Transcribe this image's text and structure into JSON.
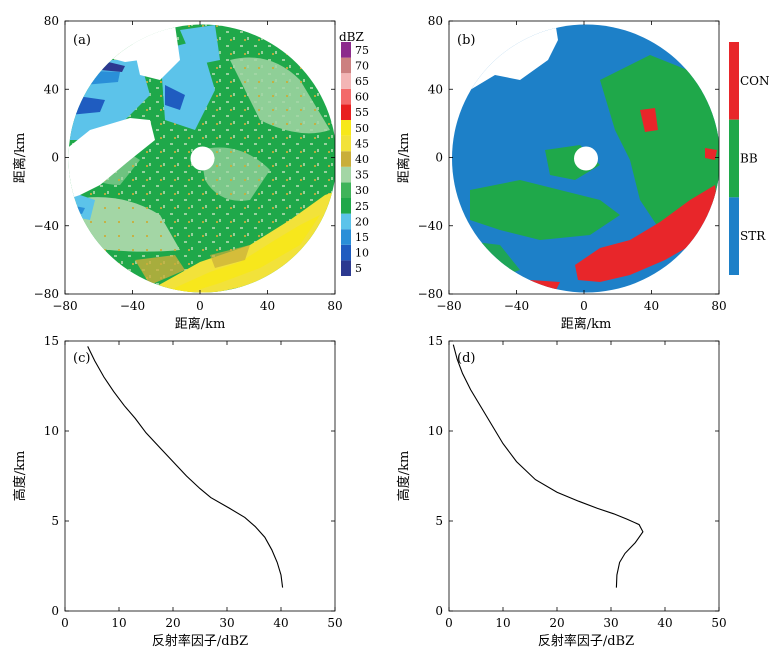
{
  "chart_data": [
    {
      "panel": "(a)",
      "type": "heatmap",
      "xlabel": "距离/km",
      "ylabel": "距离/km",
      "xlim": [
        -80,
        80
      ],
      "ylim": [
        -80,
        80
      ],
      "xticks": [
        "−80",
        "−40",
        "0",
        "40",
        "80"
      ],
      "yticks": [
        "80",
        "40",
        "0",
        "−40",
        "−80"
      ],
      "colorbar": {
        "title": "dBZ",
        "levels": [
          5,
          10,
          15,
          20,
          25,
          30,
          35,
          40,
          45,
          50,
          55,
          60,
          65,
          70,
          75
        ],
        "labels": [
          "5",
          "10",
          "15",
          "20",
          "25",
          "30",
          "35",
          "40",
          "45",
          "50",
          "55",
          "60",
          "65",
          "70",
          "75"
        ],
        "colors": [
          "#2c3990",
          "#1f5cc0",
          "#2a8fd8",
          "#5cc3ea",
          "#1fa84a",
          "#3fb45a",
          "#a3d6a5",
          "#c9ae3a",
          "#f2e23a",
          "#f7e81a",
          "#e82020",
          "#f36a6a",
          "#f3b5b5",
          "#cc8080",
          "#8c2a8c"
        ]
      }
    },
    {
      "panel": "(b)",
      "type": "heatmap",
      "xlabel": "距离/km",
      "ylabel": "距离/km",
      "xlim": [
        -80,
        80
      ],
      "ylim": [
        -80,
        80
      ],
      "xticks": [
        "−80",
        "−40",
        "0",
        "40",
        "80"
      ],
      "yticks": [
        "80",
        "40",
        "0",
        "−40",
        "−80"
      ],
      "categories": [
        "CON",
        "BB",
        "STR"
      ],
      "category_colors": [
        "#e8262a",
        "#1fa84a",
        "#1d80c8"
      ]
    },
    {
      "panel": "(c)",
      "type": "line",
      "xlabel": "反射率因子/dBZ",
      "ylabel": "高度/km",
      "xlim": [
        0,
        50
      ],
      "ylim": [
        0,
        15
      ],
      "xticks": [
        "0",
        "10",
        "20",
        "30",
        "40",
        "50"
      ],
      "yticks": [
        "0",
        "5",
        "10",
        "15"
      ],
      "x": [
        40.3,
        40.0,
        39.3,
        38.3,
        37.0,
        35.2,
        33.3,
        30.5,
        27.0,
        25.0,
        22.5,
        20.0,
        17.5,
        15.0,
        13.0,
        11.0,
        9.0,
        7.2,
        5.5,
        4.2
      ],
      "y": [
        1.3,
        2.0,
        2.7,
        3.4,
        4.1,
        4.7,
        5.2,
        5.7,
        6.3,
        6.8,
        7.5,
        8.3,
        9.1,
        9.9,
        10.7,
        11.4,
        12.2,
        13.0,
        13.9,
        14.7
      ]
    },
    {
      "panel": "(d)",
      "type": "line",
      "xlabel": "反射率因子/dBZ",
      "ylabel": "高度/km",
      "xlim": [
        0,
        50
      ],
      "ylim": [
        0,
        15
      ],
      "xticks": [
        "0",
        "10",
        "20",
        "30",
        "40",
        "50"
      ],
      "yticks": [
        "0",
        "5",
        "10",
        "15"
      ],
      "x": [
        31.0,
        31.1,
        31.6,
        32.6,
        34.5,
        35.9,
        35.2,
        33.0,
        30.5,
        27.5,
        24.0,
        20.0,
        16.0,
        12.5,
        10.0,
        8.0,
        6.0,
        4.0,
        2.5,
        1.5,
        0.8
      ],
      "y": [
        1.3,
        2.0,
        2.7,
        3.2,
        3.8,
        4.4,
        4.8,
        5.1,
        5.4,
        5.7,
        6.1,
        6.6,
        7.3,
        8.3,
        9.3,
        10.3,
        11.3,
        12.3,
        13.2,
        14.0,
        14.8
      ]
    }
  ]
}
